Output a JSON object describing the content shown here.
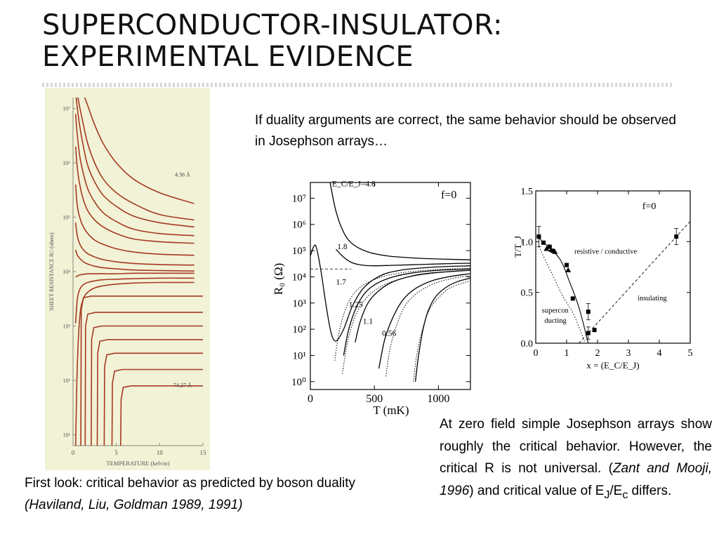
{
  "slide": {
    "title_line1": "SUPERCONDUCTOR-INSULATOR:",
    "title_line2": "EXPERIMENTAL EVIDENCE",
    "intro_text": "If duality arguments are correct, the same behavior should be observed in Josephson arrays…",
    "left_caption_plain": "First look: critical behavior as predicted by boson duality",
    "left_caption_ref": "(Haviland, Liu, Goldman 1989, 1991)",
    "right_caption": {
      "part1": "At zero field simple Josephson arrays show roughly the critical behavior. However, the critical R is not universal. (",
      "ref": "Zant and Mooji, 1996",
      "part2": ") and critical value of E",
      "sub1": "J",
      "slash": "/E",
      "sub2": "c",
      "part3": " differs."
    }
  },
  "chart_data": [
    {
      "type": "line",
      "ylabel": "SHEET RESISTANCE R□ (ohms)",
      "xlabel": "TEMPERATURE (kelvin)",
      "x_ticks": [
        "0",
        "5",
        "10",
        "15"
      ],
      "y_ticks": [
        "10⁷",
        "10⁶",
        "10⁵",
        "10⁴",
        "10³",
        "10²",
        "10¹"
      ],
      "xlim": [
        0,
        15
      ],
      "y_log10_lim": [
        0.8,
        7.2
      ],
      "annotations": [
        "4.36 Å",
        "74.27 Å"
      ],
      "background": "#f2f2d6",
      "line_color": "#a53a22",
      "x": [
        0.3,
        0.5,
        0.8,
        1.2,
        1.7,
        2.5,
        3.5,
        5,
        7,
        10,
        14
      ],
      "series": [
        {
          "name": "",
          "log10_values": [
            7.3,
            7.3,
            7.3,
            7.25,
            7.05,
            6.7,
            6.35,
            6.0,
            5.7,
            5.45,
            5.25
          ]
        },
        {
          "name": "",
          "log10_values": [
            7.3,
            7.25,
            7.0,
            6.7,
            6.35,
            6.0,
            5.7,
            5.45,
            5.25,
            5.05,
            4.95
          ]
        },
        {
          "name": "",
          "log10_values": [
            7.3,
            7.0,
            6.65,
            6.3,
            5.95,
            5.65,
            5.4,
            5.2,
            5.02,
            4.9,
            4.82
          ]
        },
        {
          "name": "",
          "log10_values": [
            6.9,
            6.5,
            6.1,
            5.8,
            5.52,
            5.28,
            5.08,
            4.92,
            4.78,
            4.7,
            4.66
          ]
        },
        {
          "name": "",
          "log10_values": [
            6.3,
            5.9,
            5.58,
            5.32,
            5.12,
            4.95,
            4.82,
            4.7,
            4.6,
            4.55,
            4.52
          ]
        },
        {
          "name": "",
          "log10_values": [
            5.6,
            5.2,
            4.98,
            4.82,
            4.7,
            4.58,
            4.5,
            4.42,
            4.36,
            4.32,
            4.3
          ]
        },
        {
          "name": "",
          "log10_values": [
            4.9,
            4.65,
            4.5,
            4.4,
            4.33,
            4.27,
            4.22,
            4.18,
            4.15,
            4.13,
            4.12
          ]
        },
        {
          "name": "",
          "log10_values": [
            4.4,
            4.3,
            4.24,
            4.18,
            4.14,
            4.1,
            4.07,
            4.05,
            4.03,
            4.02,
            4.01
          ]
        },
        {
          "name": "",
          "log10_values": [
            3.9,
            3.92,
            3.94,
            3.95,
            3.96,
            3.96,
            3.96,
            3.96,
            3.97,
            3.97,
            3.97
          ]
        },
        {
          "name": "",
          "log10_values": [
            3.05,
            3.5,
            3.68,
            3.76,
            3.8,
            3.83,
            3.85,
            3.86,
            3.87,
            3.88,
            3.88
          ]
        },
        {
          "name": "",
          "log10_values": [
            0.8,
            2.3,
            3.2,
            3.5,
            3.62,
            3.7,
            3.74,
            3.77,
            3.79,
            3.8,
            3.8
          ]
        }
      ],
      "cutoff_curves": [
        {
          "x_cut": 0.9,
          "plateau_log10": 3.55
        },
        {
          "x_cut": 1.4,
          "plateau_log10": 3.25
        },
        {
          "x_cut": 2.1,
          "plateau_log10": 3.0
        },
        {
          "x_cut": 2.8,
          "plateau_log10": 2.75
        },
        {
          "x_cut": 3.6,
          "plateau_log10": 2.5
        },
        {
          "x_cut": 4.5,
          "plateau_log10": 2.2
        },
        {
          "x_cut": 5.5,
          "plateau_log10": 1.9
        }
      ]
    },
    {
      "type": "line",
      "xlabel": "T (mK)",
      "ylabel": "R₀ (Ω)",
      "legend_text": "f=0",
      "x_ticks": [
        "0",
        "500",
        "1000"
      ],
      "y_ticks": [
        "10⁰",
        "10¹",
        "10²",
        "10³",
        "10⁴",
        "10⁵",
        "10⁶",
        "10⁷"
      ],
      "xlim": [
        0,
        1250
      ],
      "y_log10_lim": [
        -0.3,
        7.6
      ],
      "dashed_level_log10": 4.3,
      "series": [
        {
          "name": "E_C/E_J=4.6",
          "x": [
            150,
            200,
            260,
            330,
            450,
            600,
            800,
            1000,
            1250
          ],
          "log10_values": [
            7.7,
            6.5,
            5.7,
            5.25,
            4.95,
            4.8,
            4.72,
            4.68,
            4.65
          ]
        },
        {
          "name": "1.8",
          "x": [
            200,
            260,
            320,
            400,
            500,
            650,
            850,
            1050,
            1250
          ],
          "log10_values": [
            5.05,
            4.75,
            4.55,
            4.45,
            4.42,
            4.44,
            4.47,
            4.5,
            4.52
          ]
        },
        {
          "name": "",
          "x": [
            0,
            40,
            80,
            120,
            160,
            200,
            260,
            330,
            420,
            550,
            700,
            900,
            1100,
            1250
          ],
          "log10_values": [
            4.8,
            5.2,
            4.3,
            3.0,
            1.9,
            1.55,
            2.0,
            2.9,
            3.6,
            4.05,
            4.25,
            4.35,
            4.4,
            4.42
          ]
        },
        {
          "name": "1.7",
          "x": [
            260,
            300,
            360,
            430,
            520,
            650,
            800,
            1000,
            1250
          ],
          "log10_values": [
            1.0,
            2.0,
            2.85,
            3.4,
            3.75,
            4.0,
            4.15,
            4.25,
            4.3
          ]
        },
        {
          "name": "1.25",
          "x": [
            350,
            390,
            450,
            530,
            640,
            780,
            950,
            1250
          ],
          "log10_values": [
            1.5,
            2.3,
            3.0,
            3.45,
            3.8,
            4.02,
            4.15,
            4.25
          ]
        },
        {
          "name": "1.1",
          "x": [
            535,
            580,
            640,
            720,
            820,
            950,
            1100,
            1250
          ],
          "log10_values": [
            0.5,
            1.6,
            2.4,
            3.1,
            3.55,
            3.85,
            4.02,
            4.12
          ]
        },
        {
          "name": "0.56",
          "x": [
            820,
            845,
            880,
            920,
            980,
            1060,
            1150,
            1250
          ],
          "log10_values": [
            0.0,
            1.0,
            2.0,
            2.7,
            3.25,
            3.6,
            3.82,
            3.95
          ]
        }
      ],
      "dotted_curves": [
        {
          "x": [
            190,
            225,
            270,
            330,
            420,
            560,
            750,
            1000,
            1250
          ],
          "log10_values": [
            0.8,
            1.9,
            2.7,
            3.3,
            3.7,
            4.0,
            4.18,
            4.28,
            4.32
          ]
        },
        {
          "x": [
            250,
            290,
            350,
            430,
            540,
            690,
            870,
            1100,
            1250
          ],
          "log10_values": [
            0.3,
            1.5,
            2.5,
            3.15,
            3.6,
            3.9,
            4.08,
            4.2,
            4.25
          ]
        },
        {
          "x": [
            590,
            620,
            670,
            740,
            840,
            970,
            1120,
            1250
          ],
          "log10_values": [
            0.2,
            1.2,
            2.1,
            2.9,
            3.4,
            3.75,
            3.95,
            4.05
          ]
        },
        {
          "x": [
            805,
            830,
            870,
            925,
            1000,
            1100,
            1250
          ],
          "log10_values": [
            0.0,
            1.0,
            1.9,
            2.7,
            3.2,
            3.6,
            3.85
          ]
        }
      ]
    },
    {
      "type": "scatter",
      "xlabel": "x = (E_C/E_J)",
      "ylabel": "T/T_J",
      "legend_text": "f=0",
      "xlim": [
        0,
        5
      ],
      "ylim": [
        0,
        1.5
      ],
      "x_ticks": [
        "0",
        "1",
        "2",
        "3",
        "4",
        "5"
      ],
      "y_ticks": [
        "0.0",
        "0.5",
        "1.0",
        "1.5"
      ],
      "region_labels": [
        "resistive / conductive",
        "insulating",
        "supercon",
        "ducting"
      ],
      "squares": {
        "x": [
          0.1,
          0.25,
          0.45,
          0.55,
          1.0,
          1.2,
          1.7,
          1.7,
          1.9,
          4.55
        ],
        "y": [
          1.05,
          0.99,
          0.95,
          0.91,
          0.77,
          0.44,
          0.31,
          0.1,
          0.13,
          1.05
        ]
      },
      "triangles": {
        "x": [
          0.35,
          0.42,
          0.5,
          0.62,
          1.05
        ],
        "y": [
          0.93,
          0.95,
          0.92,
          0.9,
          0.72
        ]
      },
      "error_bars": [
        {
          "x": 0.1,
          "y": 1.05,
          "err": 0.1
        },
        {
          "x": 1.7,
          "y": 0.31,
          "err": 0.08
        },
        {
          "x": 1.7,
          "y": 0.1,
          "err": 0.06
        },
        {
          "x": 4.55,
          "y": 1.05,
          "err": 0.08
        }
      ],
      "solid_boundary": {
        "x": [
          0.05,
          0.4,
          0.8,
          1.1,
          1.4,
          1.7
        ],
        "y": [
          1.05,
          0.95,
          0.82,
          0.6,
          0.35,
          0.0
        ]
      },
      "dotted_boundary": {
        "x": [
          0.1,
          0.5,
          0.9,
          1.2,
          1.45,
          1.6
        ],
        "y": [
          0.95,
          0.7,
          0.45,
          0.3,
          0.12,
          0.0
        ]
      },
      "dashed_line": {
        "x": [
          1.4,
          5.0
        ],
        "y": [
          0.0,
          1.2
        ]
      }
    }
  ]
}
